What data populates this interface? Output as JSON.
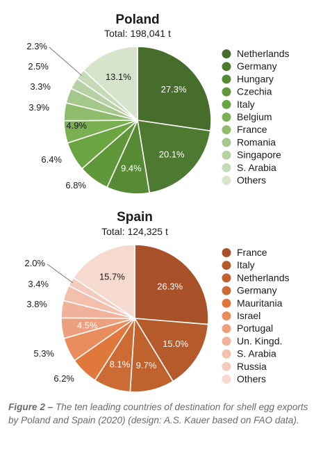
{
  "chart_data": [
    {
      "type": "pie",
      "title": "Poland",
      "subtitle": "Total: 198,041 t",
      "categories": [
        "Netherlands",
        "Germany",
        "Hungary",
        "Czechia",
        "Italy",
        "Belgium",
        "France",
        "Romania",
        "Singapore",
        "S. Arabia",
        "Others"
      ],
      "values": [
        27.3,
        20.1,
        9.4,
        6.8,
        6.4,
        4.9,
        3.9,
        3.3,
        2.5,
        2.3,
        13.1
      ],
      "labels": [
        "27.3%",
        "20.1%",
        "9.4%",
        "6.8%",
        "6.4%",
        "4.9%",
        "3.9%",
        "3.3%",
        "2.5%",
        "2.3%",
        "13.1%"
      ],
      "colors": [
        "#466d2c",
        "#4d7a30",
        "#568a35",
        "#5f973a",
        "#6aa541",
        "#7aaf52",
        "#8fbb6c",
        "#a5c78c",
        "#b7d1a4",
        "#c6dab8",
        "#d6e4cc"
      ],
      "legend_position": "right"
    },
    {
      "type": "pie",
      "title": "Spain",
      "subtitle": "Total: 124,325 t",
      "categories": [
        "France",
        "Italy",
        "Netherlands",
        "Germany",
        "Mauritania",
        "Israel",
        "Portugal",
        "Un. Kingd.",
        "S. Arabia",
        "Russia",
        "Others"
      ],
      "values": [
        26.3,
        15.0,
        9.7,
        8.1,
        6.2,
        5.3,
        4.5,
        3.8,
        3.4,
        2.0,
        15.7
      ],
      "labels": [
        "26.3%",
        "15.0%",
        "9.7%",
        "8.1%",
        "6.2%",
        "5.3%",
        "4.5%",
        "3.8%",
        "3.4%",
        "2.0%",
        "15.7%"
      ],
      "colors": [
        "#a9522a",
        "#b55a2b",
        "#c0622e",
        "#cc6b33",
        "#e0783b",
        "#e98d5c",
        "#eca07d",
        "#f0b29a",
        "#f2c0ad",
        "#f4ccbf",
        "#f6d9cf"
      ],
      "legend_position": "right"
    }
  ],
  "caption": {
    "figure_label": "Figure 2 –",
    "text": " The ten leading countries of destination for shell egg exports by Poland and Spain (2020) (design: A.S. Kauer based on FAO data)."
  }
}
